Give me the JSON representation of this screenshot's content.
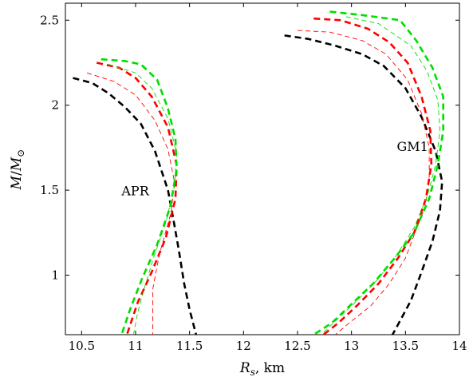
{
  "chart_data": {
    "type": "line",
    "title": "",
    "xlabel": "R_s, km",
    "ylabel": "M/M_⊙",
    "xlim": [
      10.35,
      14.0
    ],
    "ylim": [
      0.65,
      2.6
    ],
    "grid": false,
    "x_ticks": [
      10.5,
      11,
      11.5,
      12,
      12.5,
      13,
      13.5,
      14
    ],
    "x_tick_labels": [
      "10.5",
      "11",
      "11.5",
      "12",
      "12.5",
      "13",
      "13.5",
      "14"
    ],
    "y_ticks": [
      1,
      1.5,
      2,
      2.5
    ],
    "y_tick_labels": [
      "1",
      "1.5",
      "2",
      "2.5"
    ],
    "annotations": [
      {
        "text": "APR",
        "x": 10.87,
        "y": 1.47
      },
      {
        "text": "GM1",
        "x": 13.42,
        "y": 1.73
      }
    ],
    "series": [
      {
        "color": "#000000",
        "style": "thick-dashed",
        "points": [
          [
            10.42,
            2.16
          ],
          [
            10.6,
            2.13
          ],
          [
            10.75,
            2.07
          ],
          [
            10.9,
            1.99
          ],
          [
            11.05,
            1.89
          ],
          [
            11.18,
            1.73
          ],
          [
            11.3,
            1.5
          ],
          [
            11.35,
            1.33
          ],
          [
            11.4,
            1.15
          ],
          [
            11.45,
            0.95
          ],
          [
            11.5,
            0.8
          ],
          [
            11.56,
            0.65
          ]
        ]
      },
      {
        "color": "#ff0000",
        "style": "thick-dashed",
        "points": [
          [
            10.64,
            2.25
          ],
          [
            10.85,
            2.22
          ],
          [
            11.0,
            2.16
          ],
          [
            11.15,
            2.05
          ],
          [
            11.3,
            1.87
          ],
          [
            11.38,
            1.65
          ],
          [
            11.37,
            1.45
          ],
          [
            11.28,
            1.22
          ],
          [
            11.15,
            1.02
          ],
          [
            11.02,
            0.84
          ],
          [
            10.92,
            0.65
          ]
        ]
      },
      {
        "color": "#ff0000",
        "style": "thin-dashed",
        "points": [
          [
            10.55,
            2.19
          ],
          [
            10.8,
            2.14
          ],
          [
            11.0,
            2.06
          ],
          [
            11.18,
            1.91
          ],
          [
            11.3,
            1.74
          ],
          [
            11.36,
            1.55
          ],
          [
            11.33,
            1.37
          ],
          [
            11.22,
            1.12
          ],
          [
            11.16,
            0.92
          ],
          [
            11.16,
            0.65
          ]
        ]
      },
      {
        "color": "#00dd00",
        "style": "thick-dashed",
        "points": [
          [
            10.68,
            2.27
          ],
          [
            10.9,
            2.26
          ],
          [
            11.05,
            2.24
          ],
          [
            11.2,
            2.15
          ],
          [
            11.3,
            1.98
          ],
          [
            11.37,
            1.8
          ],
          [
            11.38,
            1.62
          ],
          [
            11.32,
            1.4
          ],
          [
            11.2,
            1.18
          ],
          [
            11.06,
            0.98
          ],
          [
            10.95,
            0.8
          ],
          [
            10.87,
            0.65
          ]
        ]
      },
      {
        "color": "#00dd00",
        "style": "thin-dashed",
        "points": [
          [
            10.75,
            2.24
          ],
          [
            11.0,
            2.19
          ],
          [
            11.15,
            2.1
          ],
          [
            11.3,
            1.92
          ],
          [
            11.38,
            1.72
          ],
          [
            11.36,
            1.52
          ],
          [
            11.28,
            1.31
          ],
          [
            11.17,
            1.11
          ],
          [
            11.08,
            0.92
          ],
          [
            11.02,
            0.78
          ],
          [
            10.98,
            0.65
          ]
        ]
      },
      {
        "color": "#000000",
        "style": "thick-dashed",
        "points": [
          [
            12.38,
            2.41
          ],
          [
            12.6,
            2.39
          ],
          [
            12.85,
            2.35
          ],
          [
            13.1,
            2.3
          ],
          [
            13.3,
            2.23
          ],
          [
            13.5,
            2.1
          ],
          [
            13.65,
            1.93
          ],
          [
            13.78,
            1.73
          ],
          [
            13.84,
            1.55
          ],
          [
            13.82,
            1.38
          ],
          [
            13.75,
            1.2
          ],
          [
            13.65,
            1.02
          ],
          [
            13.55,
            0.85
          ],
          [
            13.44,
            0.72
          ],
          [
            13.38,
            0.65
          ]
        ]
      },
      {
        "color": "#ff0000",
        "style": "thick-dashed",
        "points": [
          [
            12.65,
            2.51
          ],
          [
            12.9,
            2.5
          ],
          [
            13.15,
            2.45
          ],
          [
            13.35,
            2.37
          ],
          [
            13.52,
            2.25
          ],
          [
            13.65,
            2.05
          ],
          [
            13.73,
            1.85
          ],
          [
            13.74,
            1.65
          ],
          [
            13.69,
            1.45
          ],
          [
            13.58,
            1.25
          ],
          [
            13.43,
            1.1
          ],
          [
            13.25,
            0.95
          ],
          [
            13.05,
            0.82
          ],
          [
            12.88,
            0.72
          ],
          [
            12.74,
            0.65
          ]
        ]
      },
      {
        "color": "#ff0000",
        "style": "thin-dashed",
        "points": [
          [
            12.5,
            2.44
          ],
          [
            12.8,
            2.43
          ],
          [
            13.1,
            2.38
          ],
          [
            13.32,
            2.3
          ],
          [
            13.52,
            2.15
          ],
          [
            13.65,
            1.95
          ],
          [
            13.72,
            1.75
          ],
          [
            13.72,
            1.55
          ],
          [
            13.68,
            1.4
          ],
          [
            13.6,
            1.27
          ],
          [
            13.5,
            1.1
          ],
          [
            13.35,
            0.95
          ],
          [
            13.18,
            0.82
          ],
          [
            12.98,
            0.72
          ],
          [
            12.85,
            0.65
          ]
        ]
      },
      {
        "color": "#00dd00",
        "style": "thick-dashed",
        "points": [
          [
            12.8,
            2.55
          ],
          [
            13.1,
            2.53
          ],
          [
            13.45,
            2.5
          ],
          [
            13.6,
            2.38
          ],
          [
            13.75,
            2.22
          ],
          [
            13.85,
            2.05
          ],
          [
            13.85,
            1.85
          ],
          [
            13.8,
            1.65
          ],
          [
            13.72,
            1.45
          ],
          [
            13.58,
            1.25
          ],
          [
            13.4,
            1.1
          ],
          [
            13.2,
            0.95
          ],
          [
            13.0,
            0.83
          ],
          [
            12.82,
            0.72
          ],
          [
            12.65,
            0.65
          ]
        ]
      },
      {
        "color": "#00dd00",
        "style": "thin-dashed",
        "points": [
          [
            12.95,
            2.52
          ],
          [
            13.25,
            2.48
          ],
          [
            13.55,
            2.35
          ],
          [
            13.7,
            2.2
          ],
          [
            13.8,
            2.03
          ],
          [
            13.82,
            1.85
          ],
          [
            13.78,
            1.65
          ],
          [
            13.7,
            1.46
          ],
          [
            13.58,
            1.28
          ],
          [
            13.42,
            1.12
          ],
          [
            13.25,
            0.98
          ],
          [
            13.05,
            0.85
          ],
          [
            12.85,
            0.73
          ],
          [
            12.72,
            0.65
          ]
        ]
      }
    ]
  }
}
